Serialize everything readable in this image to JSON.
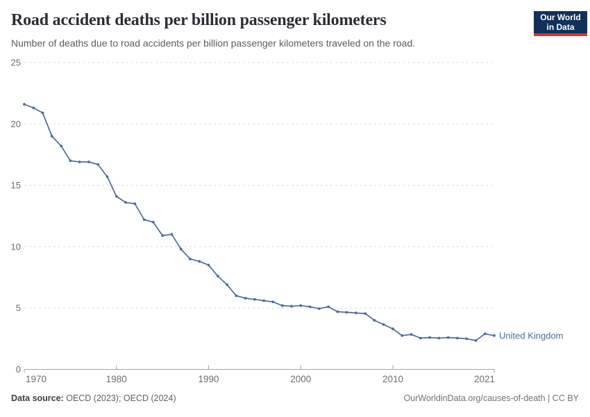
{
  "header": {
    "title": "Road accident deaths per billion passenger kilometers",
    "subtitle": "Number of deaths due to road accidents per billion passenger kilometers traveled on the road.",
    "logo": {
      "line1": "Our World",
      "line2": "in Data"
    }
  },
  "footer": {
    "source_label": "Data source:",
    "source_value": "OECD (2023); OECD (2024)",
    "attribution": "OurWorldinData.org/causes-of-death | CC BY"
  },
  "chart_data": {
    "type": "line",
    "title": "Road accident deaths per billion passenger kilometers",
    "subtitle": "Number of deaths due to road accidents per billion passenger kilometers traveled on the road.",
    "xlabel": "",
    "ylabel": "",
    "xlim": [
      1970,
      2021
    ],
    "ylim": [
      0,
      25
    ],
    "xticks": [
      1970,
      1980,
      1990,
      2000,
      2010,
      2021
    ],
    "yticks": [
      0,
      5,
      10,
      15,
      20,
      25
    ],
    "grid": "horizontal-dashed",
    "legend": "line-end-label",
    "years": [
      1970,
      1971,
      1972,
      1973,
      1974,
      1975,
      1976,
      1977,
      1978,
      1979,
      1980,
      1981,
      1982,
      1983,
      1984,
      1985,
      1986,
      1987,
      1988,
      1989,
      1990,
      1991,
      1992,
      1993,
      1994,
      1995,
      1996,
      1997,
      1998,
      1999,
      2000,
      2001,
      2002,
      2003,
      2004,
      2005,
      2006,
      2007,
      2008,
      2009,
      2010,
      2011,
      2012,
      2013,
      2014,
      2015,
      2016,
      2017,
      2018,
      2019,
      2020,
      2021
    ],
    "series": [
      {
        "name": "United Kingdom",
        "values": [
          21.6,
          21.3,
          20.9,
          19.0,
          18.2,
          17.0,
          16.9,
          16.9,
          16.7,
          15.7,
          14.1,
          13.6,
          13.5,
          12.2,
          12.0,
          10.9,
          11.0,
          9.8,
          9.0,
          8.8,
          8.5,
          7.6,
          6.9,
          6.0,
          5.8,
          5.7,
          5.6,
          5.5,
          5.2,
          5.15,
          5.2,
          5.1,
          4.95,
          5.1,
          4.7,
          4.65,
          4.6,
          4.55,
          4.0,
          3.65,
          3.3,
          2.75,
          2.85,
          2.55,
          2.6,
          2.55,
          2.6,
          2.55,
          2.5,
          2.35,
          2.9,
          2.75
        ]
      }
    ],
    "colors": {
      "line": "#4C6A9C",
      "gridline": "#dcdcdc",
      "axis": "#a5a5a5",
      "tick_label": "#6b6b6b"
    }
  }
}
